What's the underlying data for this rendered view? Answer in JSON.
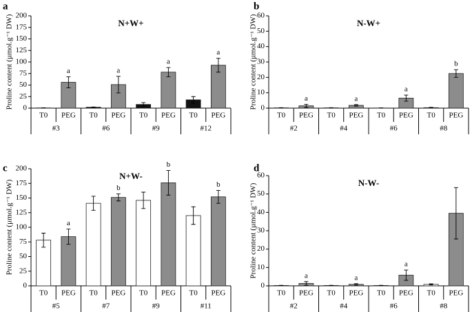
{
  "chart_data": [
    {
      "type": "bar",
      "panel": "a",
      "title": "N+W+",
      "ylabel": "Proline content (µmol.g⁻¹ DW)",
      "groups": [
        "#3",
        "#6",
        "#9",
        "#12"
      ],
      "categories": [
        "T0",
        "PEG",
        "T0",
        "PEG",
        "T0",
        "PEG",
        "T0",
        "PEG"
      ],
      "values": [
        0.5,
        56,
        2,
        51,
        8,
        78,
        18,
        93
      ],
      "errors": [
        0.3,
        12,
        0.5,
        18,
        4,
        10,
        7,
        15
      ],
      "annotations": [
        null,
        "a",
        null,
        "a",
        null,
        "a",
        null,
        "a"
      ],
      "colors": [
        "#111111",
        "#8c8c8c",
        "#111111",
        "#8c8c8c",
        "#111111",
        "#8c8c8c",
        "#111111",
        "#8c8c8c"
      ],
      "ylim": [
        0,
        200
      ],
      "yticks": [
        0,
        25,
        50,
        75,
        100,
        125,
        150,
        175,
        200
      ]
    },
    {
      "type": "bar",
      "panel": "b",
      "title": "N-W+",
      "ylabel": "Proline content (µmol.g⁻¹ DW)",
      "groups": [
        "#2",
        "#4",
        "#6",
        "#8"
      ],
      "categories": [
        "T0",
        "PEG",
        "T0",
        "PEG",
        "T0",
        "PEG",
        "T0",
        "PEG"
      ],
      "values": [
        0.2,
        1.5,
        0.2,
        1.8,
        0.1,
        6.5,
        0.3,
        22.5
      ],
      "errors": [
        0.1,
        1,
        0.1,
        0.5,
        0.1,
        2,
        0.2,
        2.5
      ],
      "annotations": [
        null,
        "a",
        null,
        "a",
        null,
        "a",
        null,
        "b"
      ],
      "colors": [
        "#ffffff",
        "#8c8c8c",
        "#ffffff",
        "#8c8c8c",
        "#ffffff",
        "#8c8c8c",
        "#ffffff",
        "#8c8c8c"
      ],
      "ylim": [
        0,
        60
      ],
      "yticks": [
        0,
        10,
        20,
        30,
        40,
        50,
        60
      ]
    },
    {
      "type": "bar",
      "panel": "c",
      "title": "N+W-",
      "ylabel": "Proline content (µmol.g⁻¹ DW)",
      "groups": [
        "#5",
        "#7",
        "#9",
        "#11"
      ],
      "categories": [
        "T0",
        "PEG",
        "T0",
        "PEG",
        "T0",
        "PEG",
        "T0",
        "PEG"
      ],
      "values": [
        78,
        84,
        141,
        151,
        146,
        176,
        120,
        152
      ],
      "errors": [
        12,
        13,
        12,
        6,
        14,
        21,
        15,
        11
      ],
      "annotations": [
        null,
        "a",
        null,
        "b",
        null,
        "b",
        null,
        "b"
      ],
      "colors": [
        "#ffffff",
        "#8c8c8c",
        "#ffffff",
        "#8c8c8c",
        "#ffffff",
        "#8c8c8c",
        "#ffffff",
        "#8c8c8c"
      ],
      "ylim": [
        0,
        200
      ],
      "yticks": [
        0,
        25,
        50,
        75,
        100,
        125,
        150,
        175,
        200
      ]
    },
    {
      "type": "bar",
      "panel": "d",
      "title": "N-W-",
      "ylabel": "Proline content (µmol.g⁻¹ DW)",
      "groups": [
        "#2",
        "#4",
        "#6",
        "#8"
      ],
      "categories": [
        "T0",
        "PEG",
        "T0",
        "PEG",
        "T0",
        "PEG",
        "T0",
        "PEG"
      ],
      "values": [
        0.2,
        1.3,
        0.2,
        0.8,
        0.2,
        5.8,
        0.8,
        39.5
      ],
      "errors": [
        0.1,
        1,
        0.1,
        0.4,
        0.1,
        2.8,
        0.3,
        14
      ],
      "annotations": [
        null,
        "a",
        null,
        "a",
        null,
        "a",
        null,
        null
      ],
      "colors": [
        "#ffffff",
        "#8c8c8c",
        "#ffffff",
        "#8c8c8c",
        "#ffffff",
        "#8c8c8c",
        "#ffffff",
        "#8c8c8c"
      ],
      "ylim": [
        0,
        60
      ],
      "yticks": [
        0,
        10,
        20,
        30,
        40,
        50,
        60
      ]
    }
  ]
}
